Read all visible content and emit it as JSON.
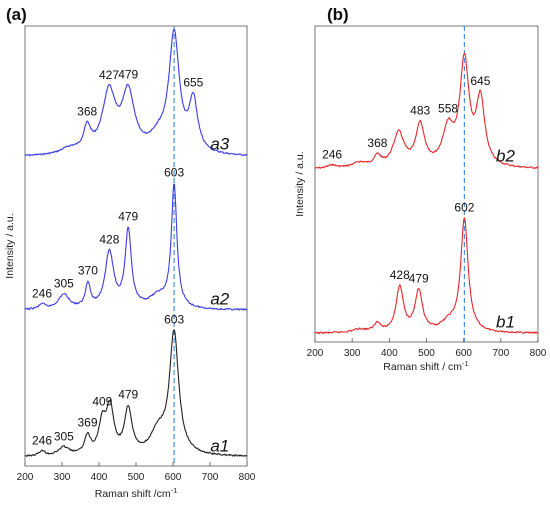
{
  "chart_data": [
    {
      "type": "line",
      "panel_label": "(a)",
      "xlabel": "Raman shift /cm",
      "xlabel_sup": "-1",
      "ylabel": "Intensity / a.u.",
      "xlim": [
        200,
        800
      ],
      "xticks": [
        200,
        300,
        400,
        500,
        600,
        700,
        800
      ],
      "ylim": [
        0,
        3.3
      ],
      "y_ticks_shown": false,
      "reference_line": {
        "x": 603,
        "style": "dashed",
        "color": "#4a90d9"
      },
      "series": [
        {
          "name": "a3",
          "color": "#3b3be8",
          "offset": 2.3,
          "peaks": [
            [
              320,
              0.05,
              30
            ],
            [
              368,
              0.2,
              12
            ],
            [
              427,
              0.52,
              22
            ],
            [
              479,
              0.5,
              20
            ],
            [
              560,
              0.12,
              30
            ],
            [
              603,
              1.0,
              17
            ],
            [
              655,
              0.43,
              14
            ]
          ],
          "x": [
            200,
            250,
            300,
            350,
            368,
            400,
            427,
            450,
            479,
            520,
            560,
            580,
            603,
            630,
            655,
            700,
            750,
            800
          ],
          "y": [
            0.03,
            0.04,
            0.08,
            0.12,
            0.22,
            0.3,
            0.55,
            0.38,
            0.5,
            0.25,
            0.3,
            0.5,
            1.0,
            0.42,
            0.44,
            0.1,
            0.05,
            0.03
          ],
          "peak_labels": [
            {
              "x": 368,
              "text": "368"
            },
            {
              "x": 427,
              "text": "427"
            },
            {
              "x": 479,
              "text": "479"
            },
            {
              "x": 655,
              "text": "655"
            }
          ]
        },
        {
          "name": "a2",
          "color": "#3b3be8",
          "offset": 1.15,
          "peaks": [
            [
              246,
              0.04,
              10
            ],
            [
              305,
              0.12,
              18
            ],
            [
              370,
              0.2,
              8
            ],
            [
              428,
              0.46,
              14
            ],
            [
              479,
              0.63,
              10
            ],
            [
              560,
              0.1,
              30
            ],
            [
              603,
              1.0,
              9
            ]
          ],
          "x": [
            200,
            246,
            305,
            370,
            428,
            479,
            560,
            603,
            650,
            700,
            800
          ],
          "y": [
            0.02,
            0.06,
            0.13,
            0.22,
            0.48,
            0.63,
            0.15,
            1.0,
            0.08,
            0.05,
            0.02
          ],
          "peak_labels": [
            {
              "x": 246,
              "text": "246"
            },
            {
              "x": 305,
              "text": "305"
            },
            {
              "x": 370,
              "text": "370"
            },
            {
              "x": 428,
              "text": "428"
            },
            {
              "x": 479,
              "text": "479"
            },
            {
              "x": 603,
              "text": "603"
            }
          ]
        },
        {
          "name": "a1",
          "color": "#222222",
          "offset": 0.05,
          "peaks": [
            [
              246,
              0.04,
              10
            ],
            [
              305,
              0.07,
              18
            ],
            [
              369,
              0.15,
              10
            ],
            [
              409,
              0.25,
              12
            ],
            [
              430,
              0.37,
              12
            ],
            [
              479,
              0.37,
              12
            ],
            [
              560,
              0.18,
              25
            ],
            [
              603,
              1.0,
              15
            ]
          ],
          "x": [
            200,
            246,
            305,
            369,
            409,
            430,
            479,
            560,
            603,
            650,
            700,
            800
          ],
          "y": [
            0.02,
            0.05,
            0.08,
            0.16,
            0.32,
            0.42,
            0.38,
            0.22,
            1.0,
            0.12,
            0.05,
            0.02
          ],
          "peak_labels": [
            {
              "x": 246,
              "text": "246"
            },
            {
              "x": 305,
              "text": "305"
            },
            {
              "x": 369,
              "text": "369"
            },
            {
              "x": 409,
              "text": "409"
            },
            {
              "x": 479,
              "text": "479"
            },
            {
              "x": 603,
              "text": "603"
            }
          ]
        }
      ]
    },
    {
      "type": "line",
      "panel_label": "(b)",
      "xlabel": "Raman shift / cm",
      "xlabel_sup": "-1",
      "ylabel": "Intensity / a.u.",
      "xlim": [
        200,
        800
      ],
      "xticks": [
        200,
        300,
        400,
        500,
        600,
        700,
        800
      ],
      "ylim": [
        0,
        2.5
      ],
      "y_ticks_shown": false,
      "reference_line": {
        "x": 602,
        "style": "dashed",
        "color": "#4a90d9"
      },
      "series": [
        {
          "name": "b2",
          "color": "#e8262a",
          "offset": 1.35,
          "peaks": [
            [
              246,
              0.03,
              15
            ],
            [
              320,
              0.05,
              25
            ],
            [
              368,
              0.1,
              12
            ],
            [
              425,
              0.33,
              18
            ],
            [
              483,
              0.4,
              14
            ],
            [
              558,
              0.35,
              18
            ],
            [
              602,
              1.0,
              15
            ],
            [
              645,
              0.63,
              14
            ]
          ],
          "x": [
            200,
            246,
            320,
            368,
            425,
            483,
            558,
            602,
            645,
            700,
            800
          ],
          "y": [
            0.02,
            0.05,
            0.06,
            0.12,
            0.35,
            0.42,
            0.4,
            1.0,
            0.65,
            0.08,
            0.02
          ],
          "peak_labels": [
            {
              "x": 246,
              "text": "246"
            },
            {
              "x": 368,
              "text": "368"
            },
            {
              "x": 483,
              "text": "483"
            },
            {
              "x": 558,
              "text": "558"
            },
            {
              "x": 645,
              "text": "645"
            }
          ]
        },
        {
          "name": "b1",
          "color": "#e8262a",
          "offset": 0.05,
          "peaks": [
            [
              320,
              0.03,
              25
            ],
            [
              368,
              0.08,
              10
            ],
            [
              428,
              0.4,
              12
            ],
            [
              479,
              0.36,
              12
            ],
            [
              560,
              0.08,
              25
            ],
            [
              602,
              1.0,
              12
            ]
          ],
          "x": [
            200,
            320,
            368,
            428,
            479,
            560,
            602,
            650,
            700,
            800
          ],
          "y": [
            0.02,
            0.05,
            0.1,
            0.42,
            0.38,
            0.12,
            1.0,
            0.1,
            0.04,
            0.02
          ],
          "peak_labels": [
            {
              "x": 428,
              "text": "428"
            },
            {
              "x": 479,
              "text": "479"
            },
            {
              "x": 602,
              "text": "602"
            }
          ]
        }
      ]
    }
  ]
}
